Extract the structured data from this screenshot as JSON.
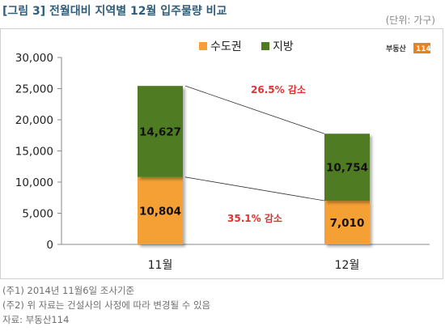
{
  "header": {
    "title": "[그림 3] 전월대비 지역별 12월 입주물량 비교",
    "unit": "(단위: 가구)"
  },
  "logo": {
    "text": "부동산",
    "badge": "114"
  },
  "notes": [
    "(주1) 2014년 11월6일 조사기준",
    "(주2) 위 자료는 건설사의 사정에 따라 변경될 수 있음",
    "자료: 부동산114"
  ],
  "colors": {
    "capital": "#f5a036",
    "provinces": "#4f7c20",
    "annotation": "#e03030"
  },
  "chart_data": {
    "type": "bar",
    "stacked": true,
    "categories": [
      "11월",
      "12월"
    ],
    "series": [
      {
        "name": "수도권",
        "values": [
          10804,
          7010
        ]
      },
      {
        "name": "지방",
        "values": [
          14627,
          10754
        ]
      }
    ],
    "data_labels": {
      "수도권": [
        "10,804",
        "7,010"
      ],
      "지방": [
        "14,627",
        "10,754"
      ]
    },
    "annotations": [
      "26.5% 감소",
      "35.1% 감소"
    ],
    "ylim": [
      0,
      30000
    ],
    "yticks": [
      0,
      5000,
      10000,
      15000,
      20000,
      25000,
      30000
    ],
    "ytick_labels": [
      "0",
      "5,000",
      "10,000",
      "15,000",
      "20,000",
      "25,000",
      "30,000"
    ],
    "legend": "top-center",
    "grid": false
  }
}
